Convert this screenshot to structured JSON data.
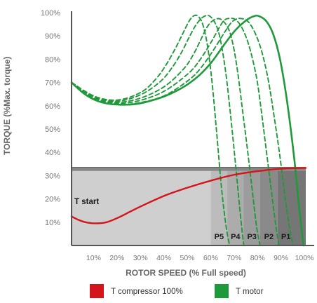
{
  "colors": {
    "motor": "#1f9a3a",
    "compressor": "#d4141b",
    "axis_text": "#777777",
    "axis_label": "#666666",
    "region_light": "#cfcfcf",
    "band_top": "#888888"
  },
  "chart_data": {
    "type": "line",
    "xlabel": "ROTOR SPEED (% Full speed)",
    "ylabel": "TORQUE (%Max. torque)",
    "xlim": [
      0,
      100
    ],
    "ylim": [
      0,
      100
    ],
    "x_ticks": [
      "10%",
      "20%",
      "30%",
      "40%",
      "50%",
      "60%",
      "70%",
      "80%",
      "90%",
      "100%"
    ],
    "y_ticks": [
      "10%",
      "20%",
      "30%",
      "40%",
      "50%",
      "60%",
      "70%",
      "80%",
      "90%",
      "100%"
    ],
    "annotation": "T start",
    "legend": [
      {
        "label": "T compressor 100%",
        "color_key": "compressor"
      },
      {
        "label": "T motor",
        "color_key": "motor"
      }
    ],
    "series": [
      {
        "name": "T motor",
        "style": "solid",
        "x": [
          0,
          5,
          10,
          15,
          20,
          25,
          30,
          35,
          40,
          45,
          50,
          55,
          60,
          65,
          70,
          75,
          78,
          80,
          83,
          86,
          89,
          92,
          95,
          97,
          99
        ],
        "y": [
          70,
          65.5,
          62.5,
          61,
          60.5,
          60.5,
          61.2,
          62.5,
          64.2,
          66.5,
          69.5,
          73.5,
          79,
          86,
          92.5,
          97,
          98.5,
          98.5,
          96.5,
          91,
          80,
          62,
          38,
          18,
          0
        ]
      },
      {
        "name": "P1",
        "style": "dashed",
        "x": [
          0,
          10,
          20,
          30,
          40,
          50,
          55,
          60,
          65,
          68,
          70,
          72,
          75,
          78,
          81,
          84,
          87,
          89,
          91,
          93,
          94.5
        ],
        "y": [
          70,
          62.5,
          60.5,
          61.5,
          64.5,
          71,
          76,
          83,
          91,
          95.5,
          97,
          97.5,
          96.5,
          92,
          84,
          71,
          52,
          38,
          22,
          8,
          0
        ]
      },
      {
        "name": "P2",
        "style": "dashed",
        "x": [
          0,
          10,
          20,
          30,
          40,
          50,
          55,
          60,
          63,
          65,
          67,
          70,
          73,
          76,
          79,
          81,
          83,
          85,
          87,
          88.5
        ],
        "y": [
          70,
          62.5,
          61,
          62.5,
          66.5,
          74,
          80,
          88,
          93.5,
          96.5,
          97.5,
          97,
          93,
          85,
          72,
          58,
          42,
          26,
          10,
          0
        ]
      },
      {
        "name": "P3",
        "style": "dashed",
        "x": [
          0,
          10,
          20,
          30,
          40,
          48,
          52,
          55,
          58,
          61,
          64,
          67,
          69,
          71,
          73,
          75,
          77,
          79,
          80.5
        ],
        "y": [
          70,
          63,
          61.5,
          63.5,
          68.5,
          76,
          82,
          88,
          94,
          97,
          97,
          93,
          86,
          74,
          58,
          42,
          25,
          8,
          0
        ]
      },
      {
        "name": "P4",
        "style": "dashed",
        "x": [
          0,
          10,
          20,
          30,
          38,
          43,
          47,
          50,
          53,
          56,
          59,
          62,
          64,
          66,
          68,
          70,
          72,
          73.5
        ],
        "y": [
          70,
          63.5,
          62,
          65,
          70.5,
          76.5,
          83,
          89,
          94.5,
          98,
          98.5,
          94,
          86,
          73,
          55,
          35,
          14,
          0
        ]
      },
      {
        "name": "P5",
        "style": "dashed",
        "x": [
          0,
          10,
          20,
          30,
          36,
          40,
          44,
          47,
          50,
          52,
          54,
          56,
          58,
          60,
          62,
          64,
          66,
          67.5
        ],
        "y": [
          70,
          64,
          62.5,
          66,
          71.5,
          77,
          84,
          90,
          96,
          98.5,
          98.5,
          95,
          86,
          70,
          48,
          25,
          8,
          0
        ]
      },
      {
        "name": "T compressor 100%",
        "style": "solid",
        "x": [
          0,
          3,
          6,
          10,
          15,
          20,
          25,
          30,
          40,
          50,
          60,
          70,
          80,
          90,
          100
        ],
        "y": [
          12.5,
          11,
          10,
          9.5,
          10,
          12,
          14.5,
          17,
          21.5,
          25,
          28,
          30.5,
          32,
          33,
          33.3
        ]
      }
    ],
    "bands": [
      {
        "label": "P5",
        "x_start": 59.5,
        "x_end": 66.5
      },
      {
        "label": "P4",
        "x_start": 66.5,
        "x_end": 73.5
      },
      {
        "label": "P3",
        "x_start": 73.5,
        "x_end": 80.5
      },
      {
        "label": "P2",
        "x_start": 80.5,
        "x_end": 88.0
      },
      {
        "label": "P1",
        "x_start": 88.0,
        "x_end": 95.0
      }
    ],
    "band_levels": {
      "top": 33.5,
      "under_top": 32.0
    }
  }
}
